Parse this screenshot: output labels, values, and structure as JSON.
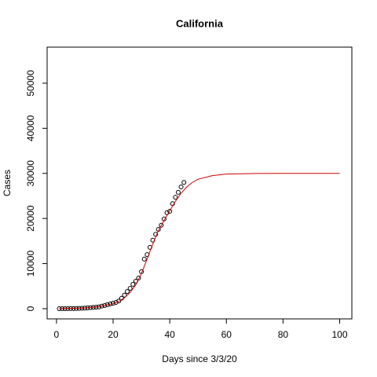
{
  "chart_data": {
    "type": "scatter",
    "title": "California",
    "xlabel": "Days since 3/3/20",
    "ylabel": "Cases",
    "xlim": [
      -3.3,
      104.3
    ],
    "ylim": [
      -2265,
      58000
    ],
    "xticks": [
      0,
      20,
      40,
      60,
      80,
      100
    ],
    "yticks": [
      0,
      10000,
      20000,
      30000,
      40000,
      50000
    ],
    "series": [
      {
        "style": "points",
        "color": "#000000",
        "x": [
          1,
          2,
          3,
          4,
          5,
          6,
          7,
          8,
          9,
          10,
          11,
          12,
          13,
          14,
          15,
          16,
          17,
          18,
          19,
          20,
          21,
          22,
          23,
          24,
          25,
          26,
          27,
          28,
          29,
          30,
          31,
          32,
          33,
          34,
          35,
          36,
          37,
          38,
          39,
          40,
          41,
          42,
          43,
          44,
          45
        ],
        "values": [
          0,
          0,
          0,
          10,
          20,
          30,
          50,
          60,
          90,
          120,
          180,
          220,
          290,
          330,
          400,
          560,
          700,
          900,
          1050,
          1200,
          1400,
          1700,
          2300,
          3000,
          3800,
          4500,
          5400,
          6100,
          6800,
          8200,
          11000,
          12000,
          13600,
          15200,
          16500,
          17600,
          18500,
          19900,
          21300,
          21600,
          23300,
          24700,
          25800,
          27000,
          28000
        ]
      },
      {
        "style": "line",
        "color": "#cc0000",
        "x": [
          1,
          5,
          10,
          15,
          20,
          22,
          24,
          26,
          28,
          30,
          32,
          34,
          36,
          38,
          40,
          42,
          44,
          46,
          48,
          50,
          55,
          60,
          70,
          80,
          90,
          100
        ],
        "values": [
          30,
          70,
          180,
          450,
          1100,
          1600,
          2400,
          3600,
          5300,
          7800,
          11000,
          14300,
          17300,
          19600,
          21700,
          23800,
          25600,
          27000,
          28000,
          28700,
          29500,
          29850,
          29980,
          30000,
          30000,
          30000
        ]
      }
    ]
  }
}
